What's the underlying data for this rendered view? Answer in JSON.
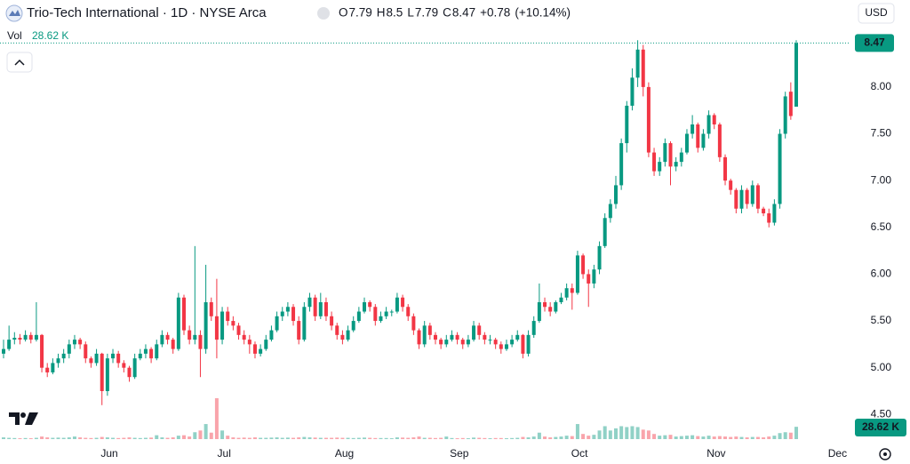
{
  "header": {
    "title": "Trio-Tech International · 1D · NYSE Arca",
    "ohlc_labels": [
      "O",
      "H",
      "L",
      "C"
    ],
    "open": 7.79,
    "high": 8.5,
    "low": 7.79,
    "close": 8.47,
    "change": {
      "value": 0.78,
      "label": "+0.78"
    },
    "change_pct": {
      "value": 10.14,
      "label": "(+10.14%)"
    },
    "volume_title": "Vol",
    "volume": {
      "value": 28620,
      "label": "28.62 K"
    },
    "currency": "USD"
  },
  "chart_data": {
    "type": "candlestick",
    "up_color": "#089981",
    "down_color": "#f23645",
    "ylim": [
      4.18,
      8.93
    ],
    "yticks": [
      {
        "value": 4.5,
        "label": "4.50"
      },
      {
        "value": 5,
        "label": "5.00"
      },
      {
        "value": 5.5,
        "label": "5.50"
      },
      {
        "value": 6,
        "label": "6.00"
      },
      {
        "value": 6.5,
        "label": "6.50"
      },
      {
        "value": 7,
        "label": "7.00"
      },
      {
        "value": 7.5,
        "label": "7.50"
      },
      {
        "value": 8,
        "label": "8.00"
      }
    ],
    "grid": false,
    "categories": [
      null,
      null,
      null,
      null,
      null,
      null,
      null,
      null,
      null,
      null,
      null,
      null,
      null,
      null,
      null,
      null,
      null,
      null,
      null,
      null,
      "Jun",
      null,
      null,
      null,
      null,
      null,
      null,
      null,
      null,
      null,
      null,
      null,
      null,
      null,
      null,
      null,
      null,
      null,
      null,
      null,
      null,
      "Jul",
      null,
      null,
      null,
      null,
      null,
      null,
      null,
      null,
      null,
      null,
      null,
      null,
      null,
      null,
      null,
      null,
      null,
      null,
      null,
      null,
      null,
      "Aug",
      null,
      null,
      null,
      null,
      null,
      null,
      null,
      null,
      null,
      null,
      null,
      null,
      null,
      null,
      null,
      null,
      null,
      null,
      null,
      null,
      "Sep",
      null,
      null,
      null,
      null,
      null,
      null,
      null,
      null,
      null,
      null,
      null,
      null,
      null,
      null,
      null,
      null,
      null,
      null,
      null,
      null,
      null,
      "Oct",
      null,
      null,
      null,
      null,
      null,
      null,
      null,
      null,
      null,
      null,
      null,
      null,
      null,
      null,
      null,
      null,
      null,
      null,
      null,
      null,
      null,
      null,
      null,
      null,
      "Nov",
      null,
      null,
      null,
      null,
      null,
      null,
      null,
      null,
      null,
      null,
      null,
      null,
      null,
      null
    ],
    "future_categories": [
      "Dec"
    ],
    "candles_ohlcv": [
      [
        5.15,
        5.3,
        5.1,
        5.2,
        4000
      ],
      [
        5.2,
        5.45,
        5.18,
        5.3,
        3000
      ],
      [
        5.3,
        5.38,
        5.25,
        5.32,
        2500
      ],
      [
        5.32,
        5.36,
        5.25,
        5.3,
        2000
      ],
      [
        5.3,
        5.4,
        5.28,
        5.35,
        2500
      ],
      [
        5.35,
        5.38,
        5.26,
        5.3,
        2000
      ],
      [
        5.3,
        5.7,
        5.28,
        5.35,
        3000
      ],
      [
        5.35,
        5.36,
        4.95,
        5.0,
        6000
      ],
      [
        5.0,
        5.05,
        4.9,
        4.95,
        4000
      ],
      [
        4.95,
        5.1,
        4.93,
        5.05,
        3000
      ],
      [
        5.05,
        5.15,
        5.0,
        5.1,
        3500
      ],
      [
        5.1,
        5.2,
        5.05,
        5.15,
        3000
      ],
      [
        5.15,
        5.3,
        5.1,
        5.25,
        4000
      ],
      [
        5.25,
        5.35,
        5.2,
        5.3,
        6000
      ],
      [
        5.3,
        5.32,
        5.2,
        5.25,
        4000
      ],
      [
        5.25,
        5.28,
        5.05,
        5.1,
        3000
      ],
      [
        5.1,
        5.12,
        5.0,
        5.05,
        2500
      ],
      [
        5.05,
        5.2,
        5.02,
        5.15,
        3000
      ],
      [
        5.15,
        5.16,
        4.6,
        4.75,
        5000
      ],
      [
        4.75,
        5.15,
        4.7,
        5.1,
        4000
      ],
      [
        5.1,
        5.2,
        5.05,
        5.15,
        3000
      ],
      [
        5.15,
        5.18,
        5.0,
        5.05,
        2500
      ],
      [
        5.05,
        5.08,
        4.95,
        5.0,
        3000
      ],
      [
        5.0,
        5.02,
        4.85,
        4.9,
        4000
      ],
      [
        4.9,
        5.15,
        4.88,
        5.1,
        3000
      ],
      [
        5.1,
        5.2,
        5.08,
        5.15,
        2500
      ],
      [
        5.15,
        5.25,
        5.1,
        5.2,
        3000
      ],
      [
        5.2,
        5.22,
        5.05,
        5.1,
        3500
      ],
      [
        5.1,
        5.3,
        5.08,
        5.25,
        9000
      ],
      [
        5.25,
        5.4,
        5.22,
        5.35,
        4000
      ],
      [
        5.35,
        5.38,
        5.25,
        5.3,
        3000
      ],
      [
        5.3,
        5.32,
        5.15,
        5.2,
        4000
      ],
      [
        5.2,
        5.8,
        5.18,
        5.75,
        8000
      ],
      [
        5.75,
        5.78,
        5.35,
        5.4,
        9000
      ],
      [
        5.4,
        5.45,
        5.25,
        5.3,
        6000
      ],
      [
        5.3,
        6.3,
        5.25,
        5.35,
        16000
      ],
      [
        5.35,
        5.4,
        4.9,
        5.2,
        20000
      ],
      [
        5.2,
        6.1,
        5.15,
        5.7,
        35000
      ],
      [
        5.7,
        5.75,
        5.5,
        5.55,
        15000
      ],
      [
        5.55,
        5.95,
        5.1,
        5.3,
        95000
      ],
      [
        5.3,
        5.65,
        5.25,
        5.6,
        20000
      ],
      [
        5.6,
        5.65,
        5.45,
        5.5,
        8000
      ],
      [
        5.5,
        5.55,
        5.4,
        5.45,
        4000
      ],
      [
        5.45,
        5.48,
        5.3,
        5.35,
        3000
      ],
      [
        5.35,
        5.4,
        5.25,
        5.3,
        3500
      ],
      [
        5.3,
        5.35,
        5.15,
        5.25,
        3000
      ],
      [
        5.25,
        5.28,
        5.1,
        5.15,
        4000
      ],
      [
        5.15,
        5.25,
        5.12,
        5.2,
        3000
      ],
      [
        5.2,
        5.35,
        5.18,
        5.3,
        3000
      ],
      [
        5.3,
        5.45,
        5.28,
        5.4,
        3500
      ],
      [
        5.4,
        5.6,
        5.38,
        5.55,
        4000
      ],
      [
        5.55,
        5.65,
        5.5,
        5.6,
        3000
      ],
      [
        5.6,
        5.7,
        5.55,
        5.65,
        3500
      ],
      [
        5.65,
        5.68,
        5.45,
        5.5,
        3000
      ],
      [
        5.5,
        5.55,
        5.25,
        5.3,
        4000
      ],
      [
        5.3,
        5.7,
        5.28,
        5.65,
        5000
      ],
      [
        5.65,
        5.8,
        5.6,
        5.75,
        4000
      ],
      [
        5.75,
        5.78,
        5.5,
        5.55,
        3500
      ],
      [
        5.55,
        5.8,
        5.52,
        5.7,
        3000
      ],
      [
        5.7,
        5.75,
        5.5,
        5.55,
        3000
      ],
      [
        5.55,
        5.6,
        5.4,
        5.45,
        3000
      ],
      [
        5.45,
        5.48,
        5.3,
        5.35,
        3500
      ],
      [
        5.35,
        5.4,
        5.25,
        5.3,
        3000
      ],
      [
        5.3,
        5.45,
        5.28,
        5.4,
        3000
      ],
      [
        5.4,
        5.55,
        5.38,
        5.5,
        2500
      ],
      [
        5.5,
        5.65,
        5.48,
        5.6,
        3000
      ],
      [
        5.6,
        5.75,
        5.58,
        5.7,
        3500
      ],
      [
        5.7,
        5.72,
        5.6,
        5.65,
        3000
      ],
      [
        5.65,
        5.68,
        5.45,
        5.5,
        2500
      ],
      [
        5.5,
        5.6,
        5.48,
        5.55,
        2500
      ],
      [
        5.55,
        5.65,
        5.52,
        5.6,
        2500
      ],
      [
        5.6,
        5.62,
        5.55,
        5.6,
        2000
      ],
      [
        5.6,
        5.8,
        5.58,
        5.75,
        4000
      ],
      [
        5.75,
        5.78,
        5.6,
        5.65,
        3500
      ],
      [
        5.65,
        5.68,
        5.5,
        5.55,
        3000
      ],
      [
        5.55,
        5.58,
        5.35,
        5.4,
        4000
      ],
      [
        5.4,
        5.42,
        5.2,
        5.25,
        6000
      ],
      [
        5.25,
        5.5,
        5.22,
        5.45,
        3000
      ],
      [
        5.45,
        5.48,
        5.3,
        5.35,
        3000
      ],
      [
        5.35,
        5.38,
        5.25,
        5.3,
        2500
      ],
      [
        5.3,
        5.32,
        5.2,
        5.25,
        3000
      ],
      [
        5.25,
        5.35,
        5.22,
        5.3,
        6000
      ],
      [
        5.3,
        5.4,
        5.28,
        5.35,
        2500
      ],
      [
        5.35,
        5.38,
        5.25,
        5.3,
        2000
      ],
      [
        5.3,
        5.32,
        5.2,
        5.25,
        2500
      ],
      [
        5.25,
        5.35,
        5.22,
        5.3,
        2000
      ],
      [
        5.3,
        5.5,
        5.28,
        5.45,
        3500
      ],
      [
        5.45,
        5.48,
        5.3,
        5.35,
        3000
      ],
      [
        5.35,
        5.38,
        5.25,
        5.3,
        2500
      ],
      [
        5.3,
        5.35,
        5.25,
        5.3,
        2000
      ],
      [
        5.3,
        5.32,
        5.2,
        5.25,
        2500
      ],
      [
        5.25,
        5.28,
        5.15,
        5.2,
        2500
      ],
      [
        5.2,
        5.3,
        5.18,
        5.25,
        2000
      ],
      [
        5.25,
        5.35,
        5.22,
        5.3,
        2500
      ],
      [
        5.3,
        5.4,
        5.28,
        5.35,
        3000
      ],
      [
        5.35,
        5.36,
        5.1,
        5.15,
        5000
      ],
      [
        5.15,
        5.4,
        5.12,
        5.35,
        4000
      ],
      [
        5.35,
        5.55,
        5.32,
        5.5,
        6000
      ],
      [
        5.5,
        5.9,
        5.48,
        5.7,
        15000
      ],
      [
        5.7,
        5.75,
        5.6,
        5.65,
        6000
      ],
      [
        5.65,
        5.7,
        5.55,
        5.6,
        4000
      ],
      [
        5.6,
        5.72,
        5.58,
        5.7,
        5000
      ],
      [
        5.7,
        5.8,
        5.68,
        5.75,
        6000
      ],
      [
        5.75,
        5.9,
        5.72,
        5.85,
        8000
      ],
      [
        5.85,
        5.9,
        5.62,
        5.8,
        7000
      ],
      [
        5.8,
        6.25,
        5.78,
        6.2,
        35000
      ],
      [
        6.2,
        6.22,
        5.95,
        6.0,
        12000
      ],
      [
        6.0,
        6.05,
        5.65,
        5.9,
        8000
      ],
      [
        5.9,
        6.1,
        5.85,
        6.05,
        10000
      ],
      [
        6.05,
        6.35,
        6.0,
        6.3,
        20000
      ],
      [
        6.3,
        6.65,
        6.28,
        6.6,
        30000
      ],
      [
        6.6,
        6.8,
        6.55,
        6.75,
        20000
      ],
      [
        6.75,
        7.05,
        6.7,
        6.95,
        25000
      ],
      [
        6.95,
        7.45,
        6.9,
        7.4,
        30000
      ],
      [
        7.4,
        7.85,
        7.3,
        7.8,
        28000
      ],
      [
        7.8,
        8.2,
        7.75,
        8.1,
        30000
      ],
      [
        8.1,
        8.5,
        8.0,
        8.4,
        28000
      ],
      [
        8.4,
        8.45,
        7.9,
        8.0,
        22000
      ],
      [
        8.0,
        8.05,
        7.25,
        7.3,
        20000
      ],
      [
        7.3,
        7.35,
        7.05,
        7.1,
        12000
      ],
      [
        7.1,
        7.25,
        7.05,
        7.2,
        8000
      ],
      [
        7.2,
        7.45,
        7.15,
        7.4,
        9000
      ],
      [
        7.4,
        7.42,
        6.95,
        7.15,
        10000
      ],
      [
        7.15,
        7.25,
        7.1,
        7.2,
        6000
      ],
      [
        7.2,
        7.35,
        7.15,
        7.3,
        7000
      ],
      [
        7.3,
        7.55,
        7.28,
        7.5,
        8000
      ],
      [
        7.5,
        7.7,
        7.45,
        7.6,
        9000
      ],
      [
        7.6,
        7.62,
        7.3,
        7.35,
        7000
      ],
      [
        7.35,
        7.55,
        7.32,
        7.5,
        6000
      ],
      [
        7.5,
        7.75,
        7.45,
        7.7,
        8000
      ],
      [
        7.7,
        7.72,
        7.55,
        7.6,
        6000
      ],
      [
        7.6,
        7.62,
        7.2,
        7.25,
        7000
      ],
      [
        7.25,
        7.28,
        6.95,
        7.0,
        6000
      ],
      [
        7.0,
        7.02,
        6.85,
        6.9,
        5000
      ],
      [
        6.9,
        6.92,
        6.65,
        6.7,
        6000
      ],
      [
        6.7,
        6.95,
        6.65,
        6.9,
        5000
      ],
      [
        6.9,
        6.92,
        6.7,
        6.75,
        4000
      ],
      [
        6.75,
        7.0,
        6.72,
        6.95,
        5000
      ],
      [
        6.95,
        6.97,
        6.65,
        6.7,
        5000
      ],
      [
        6.7,
        6.72,
        6.62,
        6.65,
        4000
      ],
      [
        6.65,
        6.7,
        6.5,
        6.55,
        6000
      ],
      [
        6.55,
        6.8,
        6.52,
        6.75,
        8000
      ],
      [
        6.75,
        7.55,
        6.7,
        7.5,
        14000
      ],
      [
        7.5,
        7.95,
        7.45,
        7.9,
        16000
      ],
      [
        7.95,
        8.05,
        7.65,
        7.69,
        15000
      ],
      [
        7.79,
        8.5,
        7.79,
        8.47,
        28620
      ]
    ]
  }
}
